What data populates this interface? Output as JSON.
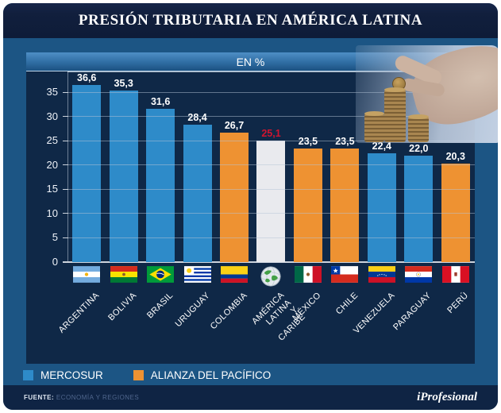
{
  "title": "PRESIÓN TRIBUTARIA EN AMÉRICA LATINA",
  "subtitle": "EN %",
  "colors": {
    "mercosur": "#2E8BC9",
    "pacifico": "#EE9232",
    "promedio": "#E9EAEE",
    "value_label": "#FFFFFF",
    "value_label_highlight": "#D0142F",
    "plot_background": "#0F2847",
    "panel_background": "#1C5584",
    "title_background": "#111F3D",
    "footer_background": "#0F2444"
  },
  "legend": [
    {
      "label": "MERCOSUR",
      "group": "mercosur",
      "color": "#2E8BC9"
    },
    {
      "label": "ALIANZA DEL PACÍFICO",
      "group": "pacifico",
      "color": "#EE9232"
    }
  ],
  "footer": {
    "source_label": "FUENTE:",
    "source_value": "ECONOMÍA Y REGIONES",
    "brand": "iProfesional"
  },
  "chart_data": {
    "type": "bar",
    "title": "PRESIÓN TRIBUTARIA EN AMÉRICA LATINA",
    "ylabel": "EN %",
    "xlabel": "",
    "ylim": [
      0,
      39.3
    ],
    "yticks": [
      0,
      5,
      10,
      15,
      20,
      25,
      30,
      35
    ],
    "grid": true,
    "legend_position": "bottom",
    "categories": [
      "ARGENTINA",
      "BOLIVIA",
      "BRASIL",
      "URUGUAY",
      "COLOMBIA",
      "AMÉRICA LATINA\nY CARIBE",
      "MÉXICO",
      "CHILE",
      "VENEZUELA",
      "PARAGUAY",
      "PERÚ"
    ],
    "values": [
      36.6,
      35.3,
      31.6,
      28.4,
      26.7,
      25.1,
      23.5,
      23.5,
      22.4,
      22.0,
      20.3
    ],
    "value_labels": [
      "36,6",
      "35,3",
      "31,6",
      "28,4",
      "26,7",
      "25,1",
      "23,5",
      "23,5",
      "22,4",
      "22,0",
      "20,3"
    ],
    "groups": [
      "mercosur",
      "mercosur",
      "mercosur",
      "mercosur",
      "pacifico",
      "promedio",
      "pacifico",
      "pacifico",
      "mercosur",
      "mercosur",
      "pacifico"
    ],
    "flags": [
      "argentina",
      "bolivia",
      "brasil",
      "uruguay",
      "colombia",
      "globe",
      "mexico",
      "chile",
      "venezuela",
      "paraguay",
      "peru"
    ]
  }
}
